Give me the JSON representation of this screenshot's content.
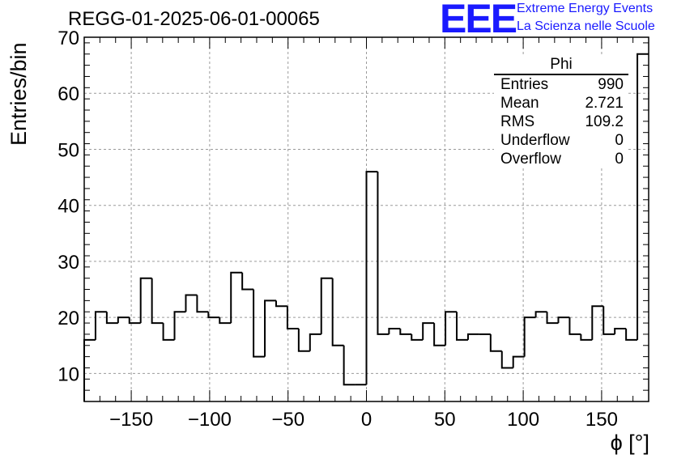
{
  "title": "REGG-01-2025-06-01-00065",
  "logo": {
    "mark": "EEE",
    "line1": "Extreme Energy Events",
    "line2": "La Scienza nelle Scuole",
    "color": "#1a1aff"
  },
  "stats": {
    "name": "Phi",
    "rows": [
      {
        "label": "Entries",
        "value": "990"
      },
      {
        "label": "Mean",
        "value": "2.721"
      },
      {
        "label": "RMS",
        "value": "109.2"
      },
      {
        "label": "Underflow",
        "value": "0"
      },
      {
        "label": "Overflow",
        "value": "0"
      }
    ]
  },
  "chart_data": {
    "type": "bar",
    "xlabel": "ϕ [°]",
    "ylabel": "Entries/bin",
    "xlim": [
      -180,
      180
    ],
    "ylim": [
      5,
      70
    ],
    "xticks": [
      -150,
      -100,
      -50,
      0,
      50,
      100,
      150
    ],
    "yticks": [
      10,
      20,
      30,
      40,
      50,
      60,
      70
    ],
    "grid": true,
    "bin_width": 7.2,
    "values": [
      16,
      21,
      19,
      20,
      19,
      27,
      19,
      16,
      21,
      24,
      21,
      20,
      19,
      28,
      25,
      13,
      23,
      22,
      18,
      14,
      17,
      27,
      15,
      8,
      8,
      46,
      17,
      18,
      17,
      16,
      19,
      15,
      21,
      16,
      17,
      17,
      14,
      11,
      13,
      20,
      21,
      19,
      20,
      17,
      16,
      22,
      17,
      18,
      16,
      67
    ]
  }
}
